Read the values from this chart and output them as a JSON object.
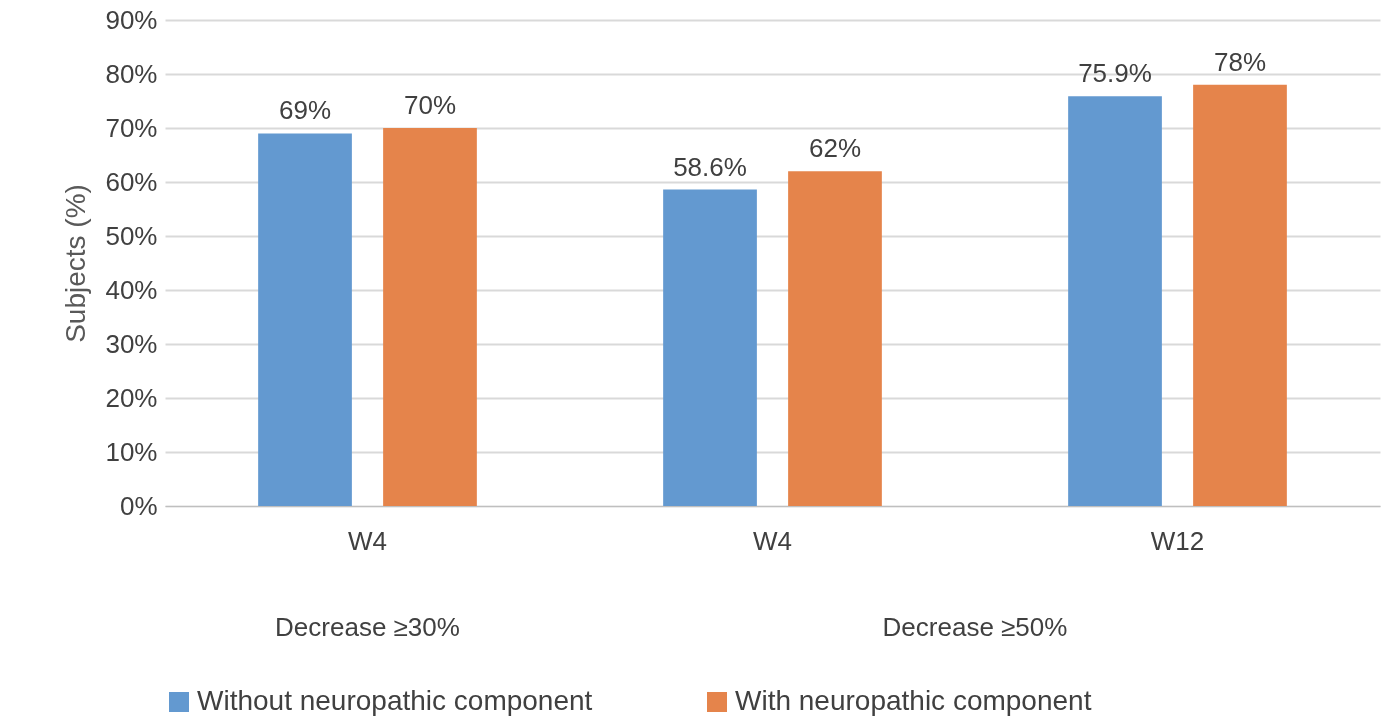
{
  "chart_data": {
    "type": "bar",
    "ylabel": "Subjects (%)",
    "categories": [
      "W4",
      "W4",
      "W12"
    ],
    "series": [
      {
        "name": "Without neuropathic component",
        "color": "#6399d0",
        "values": [
          69,
          58.6,
          75.9
        ],
        "value_labels": [
          "69%",
          "58.6%",
          "75.9%"
        ]
      },
      {
        "name": "With neuropathic component",
        "color": "#e5844b",
        "values": [
          70,
          62,
          78
        ],
        "value_labels": [
          "70%",
          "62%",
          "78%"
        ]
      }
    ],
    "annotations": [
      "Decrease ≥30%",
      "Decrease ≥50%"
    ],
    "ylim": [
      0,
      90
    ],
    "yticks": [
      {
        "value": 0,
        "label": "0%"
      },
      {
        "value": 10,
        "label": "10%"
      },
      {
        "value": 20,
        "label": "20%"
      },
      {
        "value": 30,
        "label": "30%"
      },
      {
        "value": 40,
        "label": "40%"
      },
      {
        "value": 50,
        "label": "50%"
      },
      {
        "value": 60,
        "label": "60%"
      },
      {
        "value": 70,
        "label": "70%"
      },
      {
        "value": 80,
        "label": "80%"
      },
      {
        "value": 90,
        "label": "90%"
      }
    ],
    "grid": "y",
    "legend": "bottom"
  }
}
